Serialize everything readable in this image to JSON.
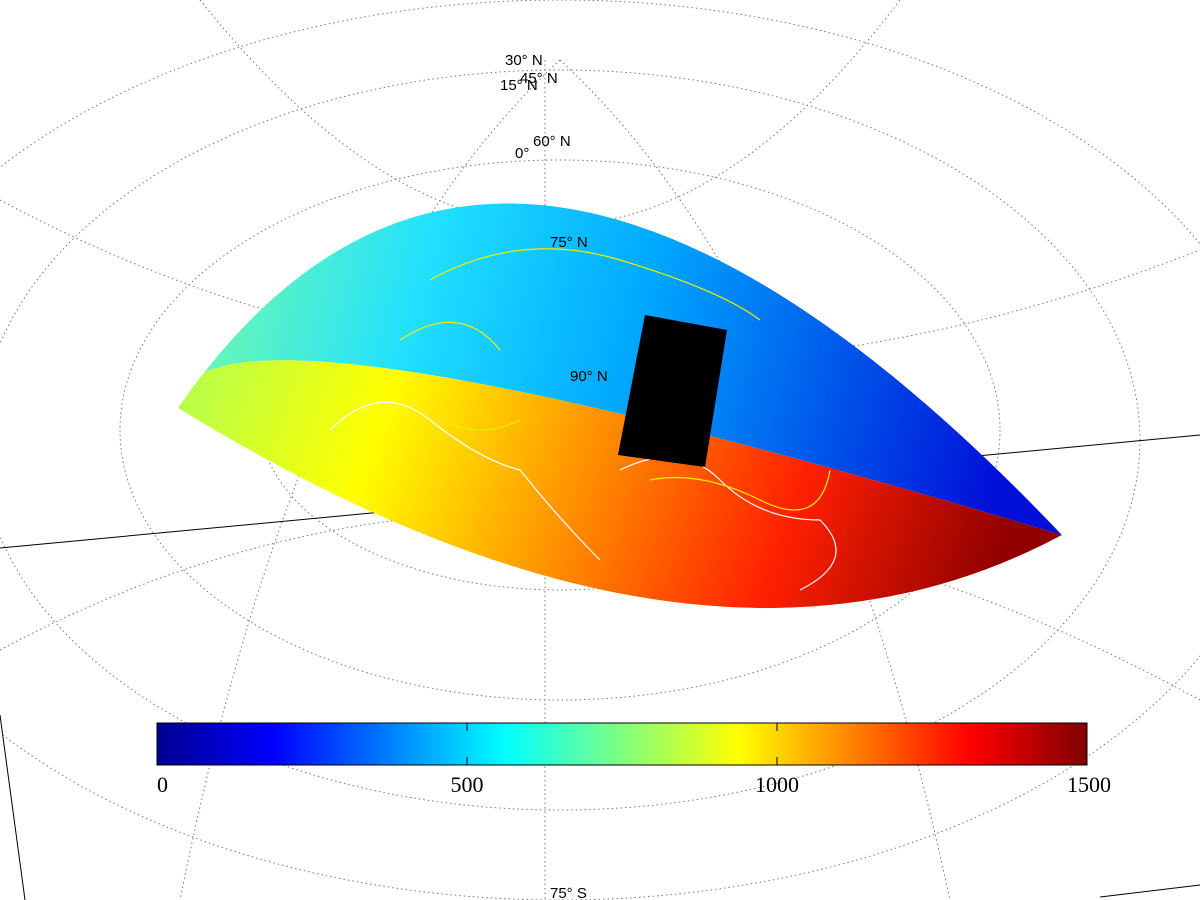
{
  "map": {
    "graticule_labels": [
      "30° N",
      "45° N",
      "15° N",
      "0°",
      "60° N",
      "75° N",
      "90° N",
      "75° S"
    ]
  },
  "colorbar": {
    "lim": [
      0,
      1500
    ],
    "ticks": [
      0,
      500,
      1000,
      1500
    ]
  }
}
